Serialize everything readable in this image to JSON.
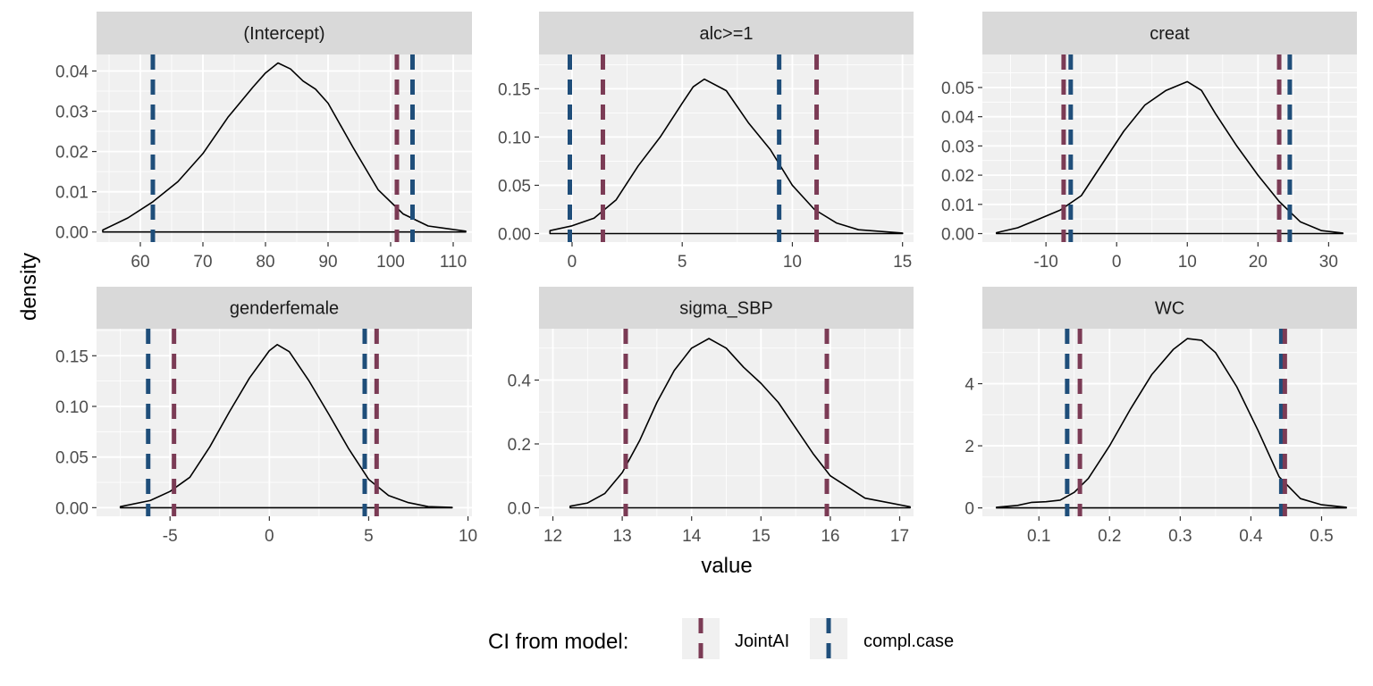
{
  "chart_data": {
    "type": "density-facets",
    "xlabel": "value",
    "ylabel": "density",
    "legend": {
      "title": "CI from model:",
      "position": "bottom",
      "entries": [
        {
          "label": "JointAI",
          "color": "#7b3b55"
        },
        {
          "label": "compl.case",
          "color": "#1f4e7a"
        }
      ]
    },
    "colors": {
      "panel_bg": "#f0f0f0",
      "strip_bg": "#d9d9d9",
      "grid": "#ffffff",
      "density_line": "#000000",
      "jointai": "#7b3b55",
      "complcase": "#1f4e7a"
    },
    "panels": [
      {
        "title": "(Intercept)",
        "xlim": [
          53,
          113
        ],
        "ylim": [
          -0.0025,
          0.0441
        ],
        "xticks": [
          60,
          70,
          80,
          90,
          100,
          110
        ],
        "xtick_labels": [
          "60",
          "70",
          "80",
          "90",
          "100",
          "110"
        ],
        "yticks": [
          0,
          0.01,
          0.02,
          0.03,
          0.04
        ],
        "ytick_labels": [
          "0.00",
          "0.01",
          "0.02",
          "0.03",
          "0.04"
        ],
        "density": {
          "x": [
            54,
            58,
            62,
            66,
            70,
            74,
            78,
            80,
            82,
            84,
            86,
            88,
            90,
            94,
            98,
            102,
            106,
            112
          ],
          "y": [
            0.0005,
            0.0035,
            0.0075,
            0.0125,
            0.0195,
            0.0285,
            0.036,
            0.0395,
            0.042,
            0.0405,
            0.0375,
            0.0355,
            0.032,
            0.021,
            0.0105,
            0.0045,
            0.0015,
            0.0002
          ]
        },
        "ci_jointai": [
          101,
          101
        ],
        "ci_complcase": [
          62,
          103.5
        ]
      },
      {
        "title": "alc>=1",
        "xlim": [
          -1.5,
          15.5
        ],
        "ylim": [
          -0.0088,
          0.1855
        ],
        "xticks": [
          0,
          5,
          10,
          15
        ],
        "xtick_labels": [
          "0",
          "5",
          "10",
          "15"
        ],
        "yticks": [
          0,
          0.05,
          0.1,
          0.15
        ],
        "ytick_labels": [
          "0.00",
          "0.05",
          "0.10",
          "0.15"
        ],
        "density": {
          "x": [
            -1,
            0,
            1,
            2,
            3,
            4,
            5,
            5.5,
            6,
            7,
            8,
            9,
            10,
            11,
            12,
            13,
            15
          ],
          "y": [
            0.003,
            0.008,
            0.016,
            0.035,
            0.07,
            0.1,
            0.135,
            0.152,
            0.16,
            0.148,
            0.115,
            0.087,
            0.05,
            0.025,
            0.011,
            0.004,
            0.0005
          ]
        },
        "ci_jointai": [
          1.4,
          11.1
        ],
        "ci_complcase": [
          -0.1,
          9.4
        ]
      },
      {
        "title": "creat",
        "xlim": [
          -19,
          34
        ],
        "ylim": [
          -0.0029,
          0.0613
        ],
        "xticks": [
          -10,
          0,
          10,
          20,
          30
        ],
        "xtick_labels": [
          "-10",
          "0",
          "10",
          "20",
          "30"
        ],
        "yticks": [
          0,
          0.01,
          0.02,
          0.03,
          0.04,
          0.05
        ],
        "ytick_labels": [
          "0.00",
          "0.01",
          "0.02",
          "0.03",
          "0.04",
          "0.05"
        ],
        "density": {
          "x": [
            -17,
            -14,
            -11,
            -8,
            -5,
            -2,
            1,
            4,
            7,
            10,
            12,
            14,
            17,
            20,
            23,
            26,
            29,
            32
          ],
          "y": [
            0.0003,
            0.002,
            0.005,
            0.008,
            0.013,
            0.024,
            0.035,
            0.044,
            0.049,
            0.052,
            0.049,
            0.041,
            0.03,
            0.02,
            0.011,
            0.004,
            0.001,
            0.0002
          ]
        },
        "ci_jointai": [
          -7.5,
          23
        ],
        "ci_complcase": [
          -6.5,
          24.5
        ]
      },
      {
        "title": "genderfemale",
        "xlim": [
          -8.7,
          10.2
        ],
        "ylim": [
          -0.0085,
          0.1767
        ],
        "xticks": [
          -5,
          0,
          5,
          10
        ],
        "xtick_labels": [
          "-5",
          "0",
          "5",
          "10"
        ],
        "yticks": [
          0,
          0.05,
          0.1,
          0.15
        ],
        "ytick_labels": [
          "0.00",
          "0.05",
          "0.10",
          "0.15"
        ],
        "density": {
          "x": [
            -7.5,
            -6,
            -5,
            -4,
            -3,
            -2,
            -1,
            0,
            0.4,
            1,
            2,
            3,
            4,
            5,
            6,
            7,
            8,
            9.2
          ],
          "y": [
            0.001,
            0.007,
            0.016,
            0.03,
            0.06,
            0.095,
            0.128,
            0.155,
            0.161,
            0.154,
            0.125,
            0.092,
            0.058,
            0.028,
            0.012,
            0.005,
            0.001,
            0.0002
          ]
        },
        "ci_jointai": [
          -4.8,
          5.4
        ],
        "ci_complcase": [
          -6.1,
          4.8
        ]
      },
      {
        "title": "sigma_SBP",
        "xlim": [
          11.8,
          17.2
        ],
        "ylim": [
          -0.0267,
          0.5609
        ],
        "xticks": [
          12,
          13,
          14,
          15,
          16,
          17
        ],
        "xtick_labels": [
          "12",
          "13",
          "14",
          "15",
          "16",
          "17"
        ],
        "yticks": [
          0,
          0.2,
          0.4
        ],
        "ytick_labels": [
          "0.0",
          "0.2",
          "0.4"
        ],
        "density": {
          "x": [
            12.25,
            12.5,
            12.75,
            13,
            13.25,
            13.5,
            13.75,
            14,
            14.25,
            14.5,
            14.75,
            15,
            15.25,
            15.5,
            15.75,
            16,
            16.5,
            17.15
          ],
          "y": [
            0.005,
            0.015,
            0.045,
            0.11,
            0.21,
            0.33,
            0.43,
            0.5,
            0.53,
            0.5,
            0.44,
            0.39,
            0.33,
            0.25,
            0.17,
            0.1,
            0.03,
            0.003
          ]
        },
        "ci_jointai": [
          13.05,
          15.95
        ],
        "ci_complcase": [
          null,
          null
        ]
      },
      {
        "title": "WC",
        "xlim": [
          0.02,
          0.55
        ],
        "ylim": [
          -0.27,
          5.77
        ],
        "xticks": [
          0.1,
          0.2,
          0.3,
          0.4,
          0.5
        ],
        "xtick_labels": [
          "0.1",
          "0.2",
          "0.3",
          "0.4",
          "0.5"
        ],
        "yticks": [
          0,
          2,
          4
        ],
        "ytick_labels": [
          "0",
          "2",
          "4"
        ],
        "density": {
          "x": [
            0.04,
            0.07,
            0.09,
            0.11,
            0.13,
            0.15,
            0.17,
            0.2,
            0.23,
            0.26,
            0.29,
            0.31,
            0.33,
            0.35,
            0.38,
            0.41,
            0.44,
            0.47,
            0.5,
            0.535
          ],
          "y": [
            0.02,
            0.08,
            0.18,
            0.2,
            0.25,
            0.5,
            0.95,
            2.0,
            3.2,
            4.3,
            5.1,
            5.45,
            5.4,
            5.0,
            3.9,
            2.5,
            1.0,
            0.3,
            0.1,
            0.02
          ]
        },
        "ci_jointai": [
          0.158,
          0.448
        ],
        "ci_complcase": [
          0.14,
          0.443
        ]
      }
    ]
  }
}
